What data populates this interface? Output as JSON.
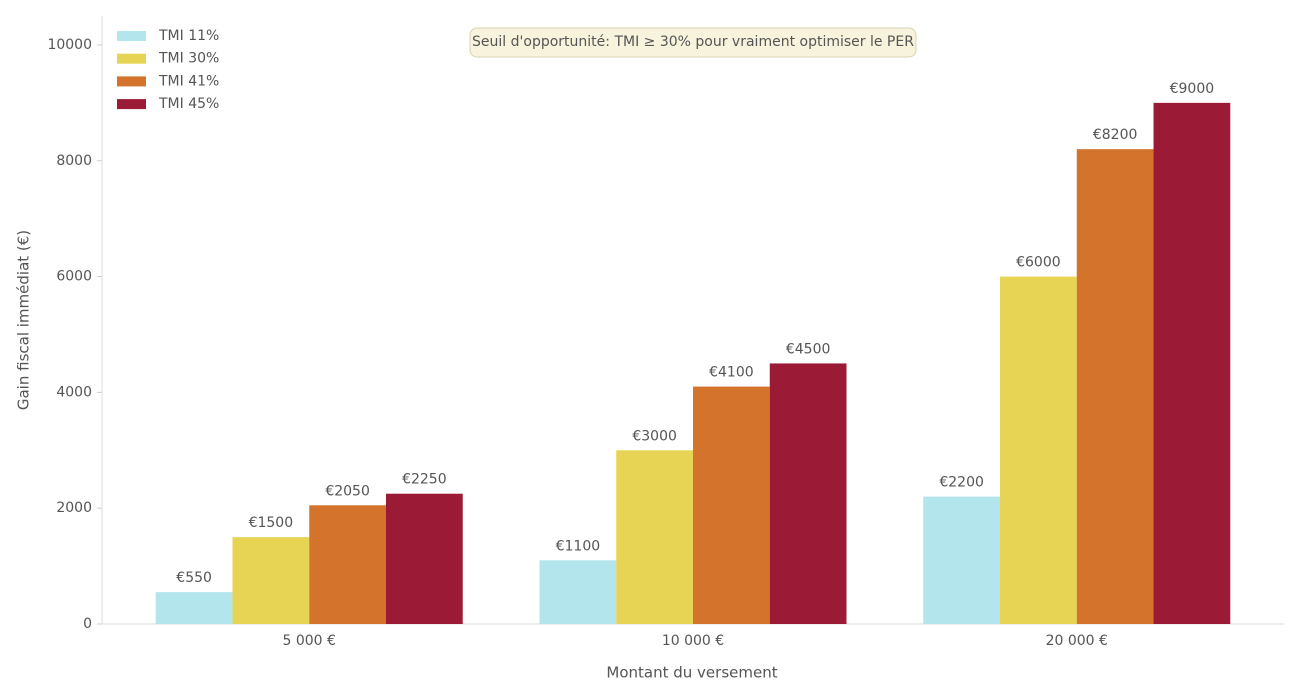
{
  "chart_data": {
    "type": "bar",
    "annotation": "Seuil d'opportunité: TMI ≥ 30% pour vraiment optimiser le PER",
    "x_label": "Montant du versement",
    "y_label": "Gain fiscal immédiat (€)",
    "categories": [
      "5 000 €",
      "10 000 €",
      "20 000 €"
    ],
    "series": [
      {
        "name": "TMI 11%",
        "color": "#b3e5ec",
        "values": [
          550,
          1100,
          2200
        ],
        "value_labels": [
          "€550",
          "€1100",
          "€2200"
        ]
      },
      {
        "name": "TMI 30%",
        "color": "#e8d454",
        "values": [
          1500,
          3000,
          6000
        ],
        "value_labels": [
          "€1500",
          "€3000",
          "€6000"
        ]
      },
      {
        "name": "TMI 41%",
        "color": "#d4732b",
        "values": [
          2050,
          4100,
          8200
        ],
        "value_labels": [
          "€2050",
          "€4100",
          "€8200"
        ]
      },
      {
        "name": "TMI 45%",
        "color": "#9b1b37",
        "values": [
          2250,
          4500,
          9000
        ],
        "value_labels": [
          "€2250",
          "€4500",
          "€9000"
        ]
      }
    ],
    "ylim": [
      0,
      10500
    ],
    "yticks": [
      0,
      2000,
      4000,
      6000,
      8000,
      10000
    ],
    "grid": false,
    "legend": "upper-left"
  }
}
